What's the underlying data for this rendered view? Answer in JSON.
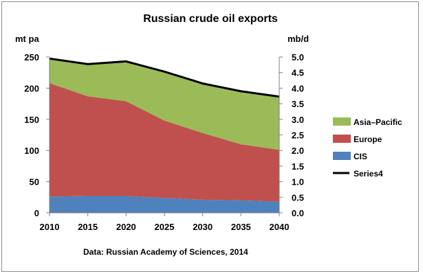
{
  "chart_data": {
    "type": "area",
    "title": "Russian crude oil exports",
    "source": "Data: Russian Academy of Sciences, 2014",
    "left_axis_label": "mt pa",
    "right_axis_label": "mb/d",
    "x": [
      2010,
      2015,
      2020,
      2025,
      2030,
      2035,
      2040
    ],
    "ylim": [
      0,
      250
    ],
    "y2lim": [
      0,
      5.0
    ],
    "yticks": [
      0,
      50,
      100,
      150,
      200,
      250
    ],
    "y2ticks": [
      "0.0",
      "0.5",
      "1.0",
      "1.5",
      "2.0",
      "2.5",
      "3.0",
      "3.5",
      "4.0",
      "4.5",
      "5.0"
    ],
    "stacked_series": [
      {
        "name": "CIS",
        "color": "#4f81bd",
        "values": [
          26,
          27,
          27,
          24,
          21,
          20,
          18
        ]
      },
      {
        "name": "Europe",
        "color": "#c0504d",
        "values": [
          182,
          160,
          152,
          124,
          107,
          90,
          83
        ]
      },
      {
        "name": "Asia–Pacific",
        "color": "#9bbb59",
        "values": [
          40,
          51,
          64,
          79,
          80,
          85,
          85
        ]
      }
    ],
    "line_series": {
      "name": "Series4",
      "color": "#000000",
      "axis": "right",
      "values": [
        4.95,
        4.77,
        4.86,
        4.53,
        4.15,
        3.9,
        3.73
      ]
    },
    "legend": [
      {
        "name": "Asia–Pacific",
        "color": "#9bbb59",
        "kind": "box"
      },
      {
        "name": "Europe",
        "color": "#c0504d",
        "kind": "box"
      },
      {
        "name": "CIS",
        "color": "#4f81bd",
        "kind": "box"
      },
      {
        "name": "Series4",
        "color": "#000000",
        "kind": "line"
      }
    ],
    "legend_position": "right",
    "grid": false
  }
}
